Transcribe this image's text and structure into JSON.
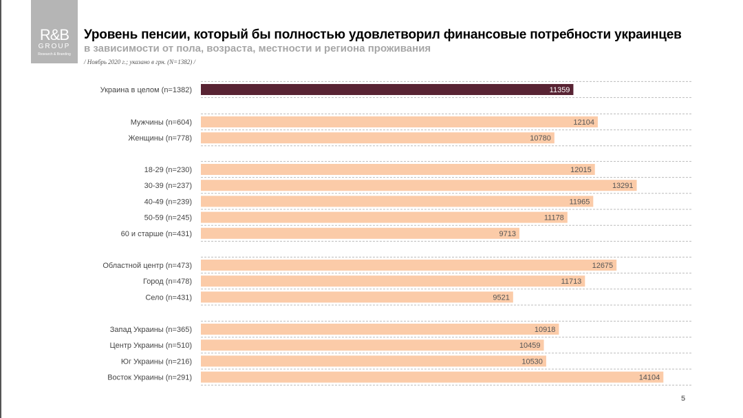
{
  "logo": {
    "line1": "R&B",
    "line2": "GROUP",
    "line3": "Research & Branding"
  },
  "header": {
    "title": "Уровень пенсии, который бы полностью удовлетворил финансовые потребности украинцев",
    "subtitle": "в зависимости от пола, возраста, местности и региона проживания",
    "note": "/ Ноябрь 2020  г.; указано в грн. (N=1382) /"
  },
  "page_number": "5",
  "chart_data": {
    "type": "bar",
    "orientation": "horizontal",
    "xlim": [
      0,
      15000
    ],
    "grid": "dashed row separators",
    "colors": {
      "total": "#582333",
      "other": "#fbcba8"
    },
    "groups": [
      {
        "categories": [
          "Украина в целом (n=1382)"
        ],
        "values": [
          11359
        ],
        "highlight": true
      },
      {
        "categories": [
          "Мужчины (n=604)",
          "Женщины (n=778)"
        ],
        "values": [
          12104,
          10780
        ]
      },
      {
        "categories": [
          "18-29 (n=230)",
          "30-39 (n=237)",
          "40-49 (n=239)",
          "50-59 (n=245)",
          "60 и старше (n=431)"
        ],
        "values": [
          12015,
          13291,
          11965,
          11178,
          9713
        ]
      },
      {
        "categories": [
          "Областной центр (n=473)",
          "Город (n=478)",
          "Село (n=431)"
        ],
        "values": [
          12675,
          11713,
          9521
        ]
      },
      {
        "categories": [
          "Запад Украины (n=365)",
          "Центр Украины (n=510)",
          "Юг Украины (n=216)",
          "Восток Украины (n=291)"
        ],
        "values": [
          10918,
          10459,
          10530,
          14104
        ]
      }
    ]
  }
}
